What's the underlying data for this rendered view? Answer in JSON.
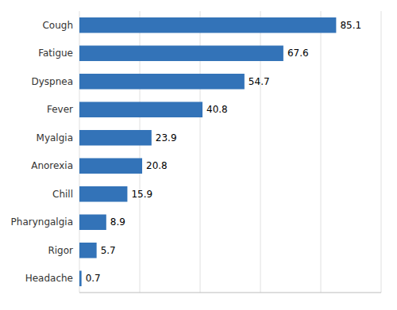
{
  "chart_data": {
    "type": "bar",
    "orientation": "horizontal",
    "categories": [
      "Cough",
      "Fatigue",
      "Dyspnea",
      "Fever",
      "Myalgia",
      "Anorexia",
      "Chill",
      "Pharyngalgia",
      "Rigor",
      "Headache"
    ],
    "values": [
      85.1,
      67.6,
      54.7,
      40.8,
      23.9,
      20.8,
      15.9,
      8.9,
      5.7,
      0.7
    ],
    "color": "#3373B8",
    "xlim": [
      0,
      100
    ],
    "xticks": [
      0,
      20,
      40,
      60,
      80,
      100
    ],
    "grid": true,
    "data_labels": true,
    "tick_labels": "y"
  }
}
